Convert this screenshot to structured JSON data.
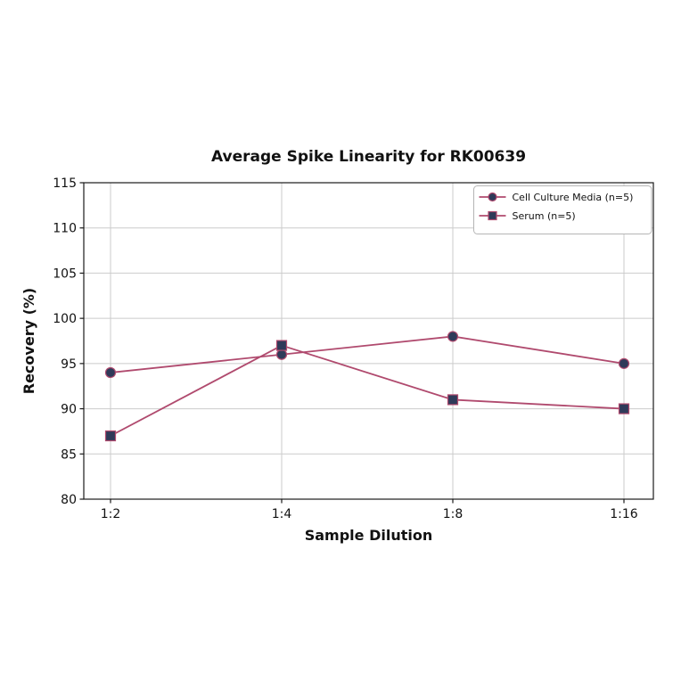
{
  "chart_data": {
    "type": "line",
    "title": "Average Spike Linearity for RK00639",
    "xlabel": "Sample Dilution",
    "ylabel": "Recovery (%)",
    "categories": [
      "1:2",
      "1:4",
      "1:8",
      "1:16"
    ],
    "series": [
      {
        "name": "Cell Culture Media (n=5)",
        "marker": "circle",
        "values": [
          94,
          96,
          98,
          95
        ]
      },
      {
        "name": "Serum (n=5)",
        "marker": "square",
        "values": [
          87,
          97,
          91,
          90
        ]
      }
    ],
    "ylim": [
      80,
      115
    ],
    "yticks": [
      80,
      85,
      90,
      95,
      100,
      105,
      110,
      115
    ],
    "grid": true,
    "legend_position": "upper right",
    "colors": {
      "line": "#b04a6e",
      "marker_fill": "#2f3a59",
      "marker_edge": "#b04a6e",
      "grid": "#cbcbcb",
      "axis": "#1a1a1a",
      "text": "#111111",
      "legend_border": "#b5b5b5",
      "background": "#ffffff"
    }
  }
}
